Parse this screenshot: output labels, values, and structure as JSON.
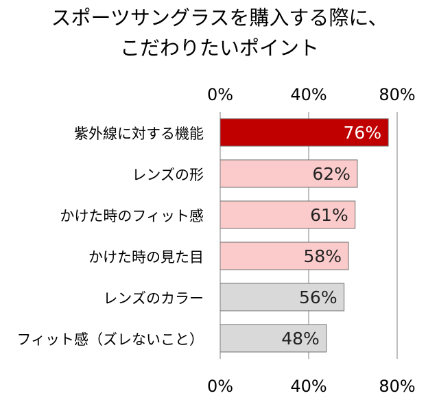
{
  "chart_data": {
    "type": "bar",
    "orientation": "horizontal",
    "title": [
      "スポーツサングラスを購入する際に、",
      "こだわりたいポイント"
    ],
    "categories": [
      "紫外線に対する機能",
      "レンズの形",
      "かけた時のフィット感",
      "かけた時の見た目",
      "レンズのカラー",
      "フィット感（ズレないこと）"
    ],
    "values": [
      76,
      62,
      61,
      58,
      56,
      48
    ],
    "value_labels": [
      "76%",
      "62%",
      "61%",
      "58%",
      "56%",
      "48%"
    ],
    "unit": "%",
    "xlim": [
      0,
      80
    ],
    "xticks": [
      0,
      40,
      80
    ],
    "xtick_labels": [
      "0%",
      "40%",
      "80%"
    ],
    "axis_positions": [
      "top",
      "bottom"
    ],
    "grid": true,
    "bar_colors": [
      "#c00000",
      "#fbcbcb",
      "#fbcbcb",
      "#fbcbcb",
      "#d9d9d9",
      "#d9d9d9"
    ],
    "value_label_colors": [
      "#ffffff",
      "#222222",
      "#222222",
      "#222222",
      "#222222",
      "#222222"
    ]
  }
}
